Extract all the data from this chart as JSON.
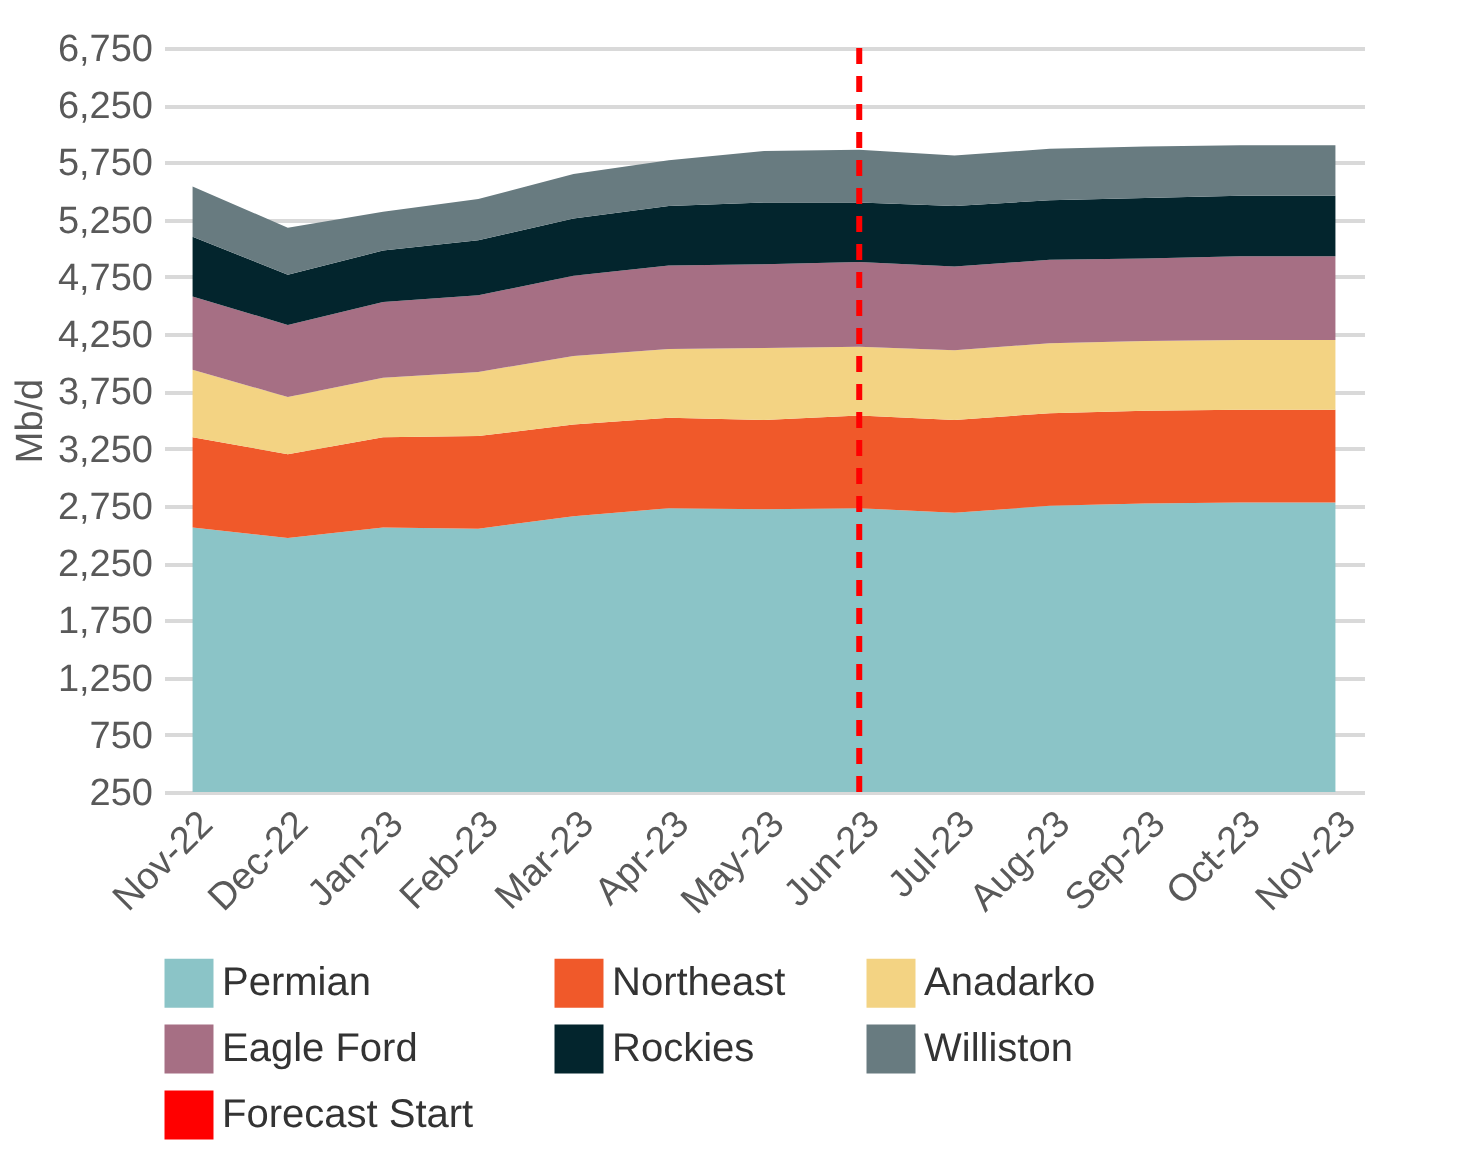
{
  "chart_data": {
    "type": "area",
    "stacked": true,
    "ylabel": "Mb/d",
    "categories": [
      "Nov-22",
      "Dec-22",
      "Jan-23",
      "Feb-23",
      "Mar-23",
      "Apr-23",
      "May-23",
      "Jun-23",
      "Jul-23",
      "Aug-23",
      "Sep-23",
      "Oct-23",
      "Nov-23"
    ],
    "series": [
      {
        "name": "Permian",
        "color": "#8bc4c7",
        "values": [
          2560,
          2470,
          2560,
          2550,
          2660,
          2730,
          2720,
          2730,
          2690,
          2750,
          2770,
          2780,
          2780
        ]
      },
      {
        "name": "Northeast",
        "color": "#f0592a",
        "values": [
          790,
          730,
          790,
          810,
          800,
          790,
          780,
          810,
          810,
          810,
          810,
          810,
          810
        ]
      },
      {
        "name": "Anadarko",
        "color": "#f3d383",
        "values": [
          590,
          500,
          520,
          560,
          600,
          600,
          630,
          600,
          610,
          610,
          610,
          610,
          610
        ]
      },
      {
        "name": "Eagle Ford",
        "color": "#a66f84",
        "values": [
          640,
          630,
          660,
          670,
          700,
          730,
          730,
          740,
          730,
          730,
          720,
          730,
          730
        ]
      },
      {
        "name": "Rockies",
        "color": "#03252d",
        "values": [
          520,
          440,
          450,
          480,
          500,
          520,
          540,
          520,
          530,
          520,
          530,
          530,
          530
        ]
      },
      {
        "name": "Williston",
        "color": "#687b80",
        "values": [
          440,
          410,
          340,
          360,
          390,
          400,
          450,
          460,
          440,
          450,
          450,
          440,
          440
        ]
      }
    ],
    "ylim": [
      250,
      6750
    ],
    "yticks": [
      250,
      750,
      {
        "value": 1250,
        "label": "1,250"
      },
      {
        "value": 1750,
        "label": "1,750"
      },
      {
        "value": 2250,
        "label": "2,250"
      },
      {
        "value": 2750,
        "label": "2,750"
      },
      {
        "value": 3250,
        "label": "3,250"
      },
      {
        "value": 3750,
        "label": "3,750"
      },
      {
        "value": 4250,
        "label": "4,250"
      },
      {
        "value": 4750,
        "label": "4,750"
      },
      {
        "value": 5250,
        "label": "5,250"
      },
      {
        "value": 5750,
        "label": "5,750"
      },
      {
        "value": 6250,
        "label": "6,250"
      },
      {
        "value": 6750,
        "label": "6,750"
      }
    ],
    "grid": "y",
    "legend": "bottom",
    "ref_lines": [
      {
        "axis": "x",
        "value": "Jun-23",
        "label": "Forecast Start",
        "color": "#ff0000",
        "line_style": "dashed"
      }
    ]
  }
}
